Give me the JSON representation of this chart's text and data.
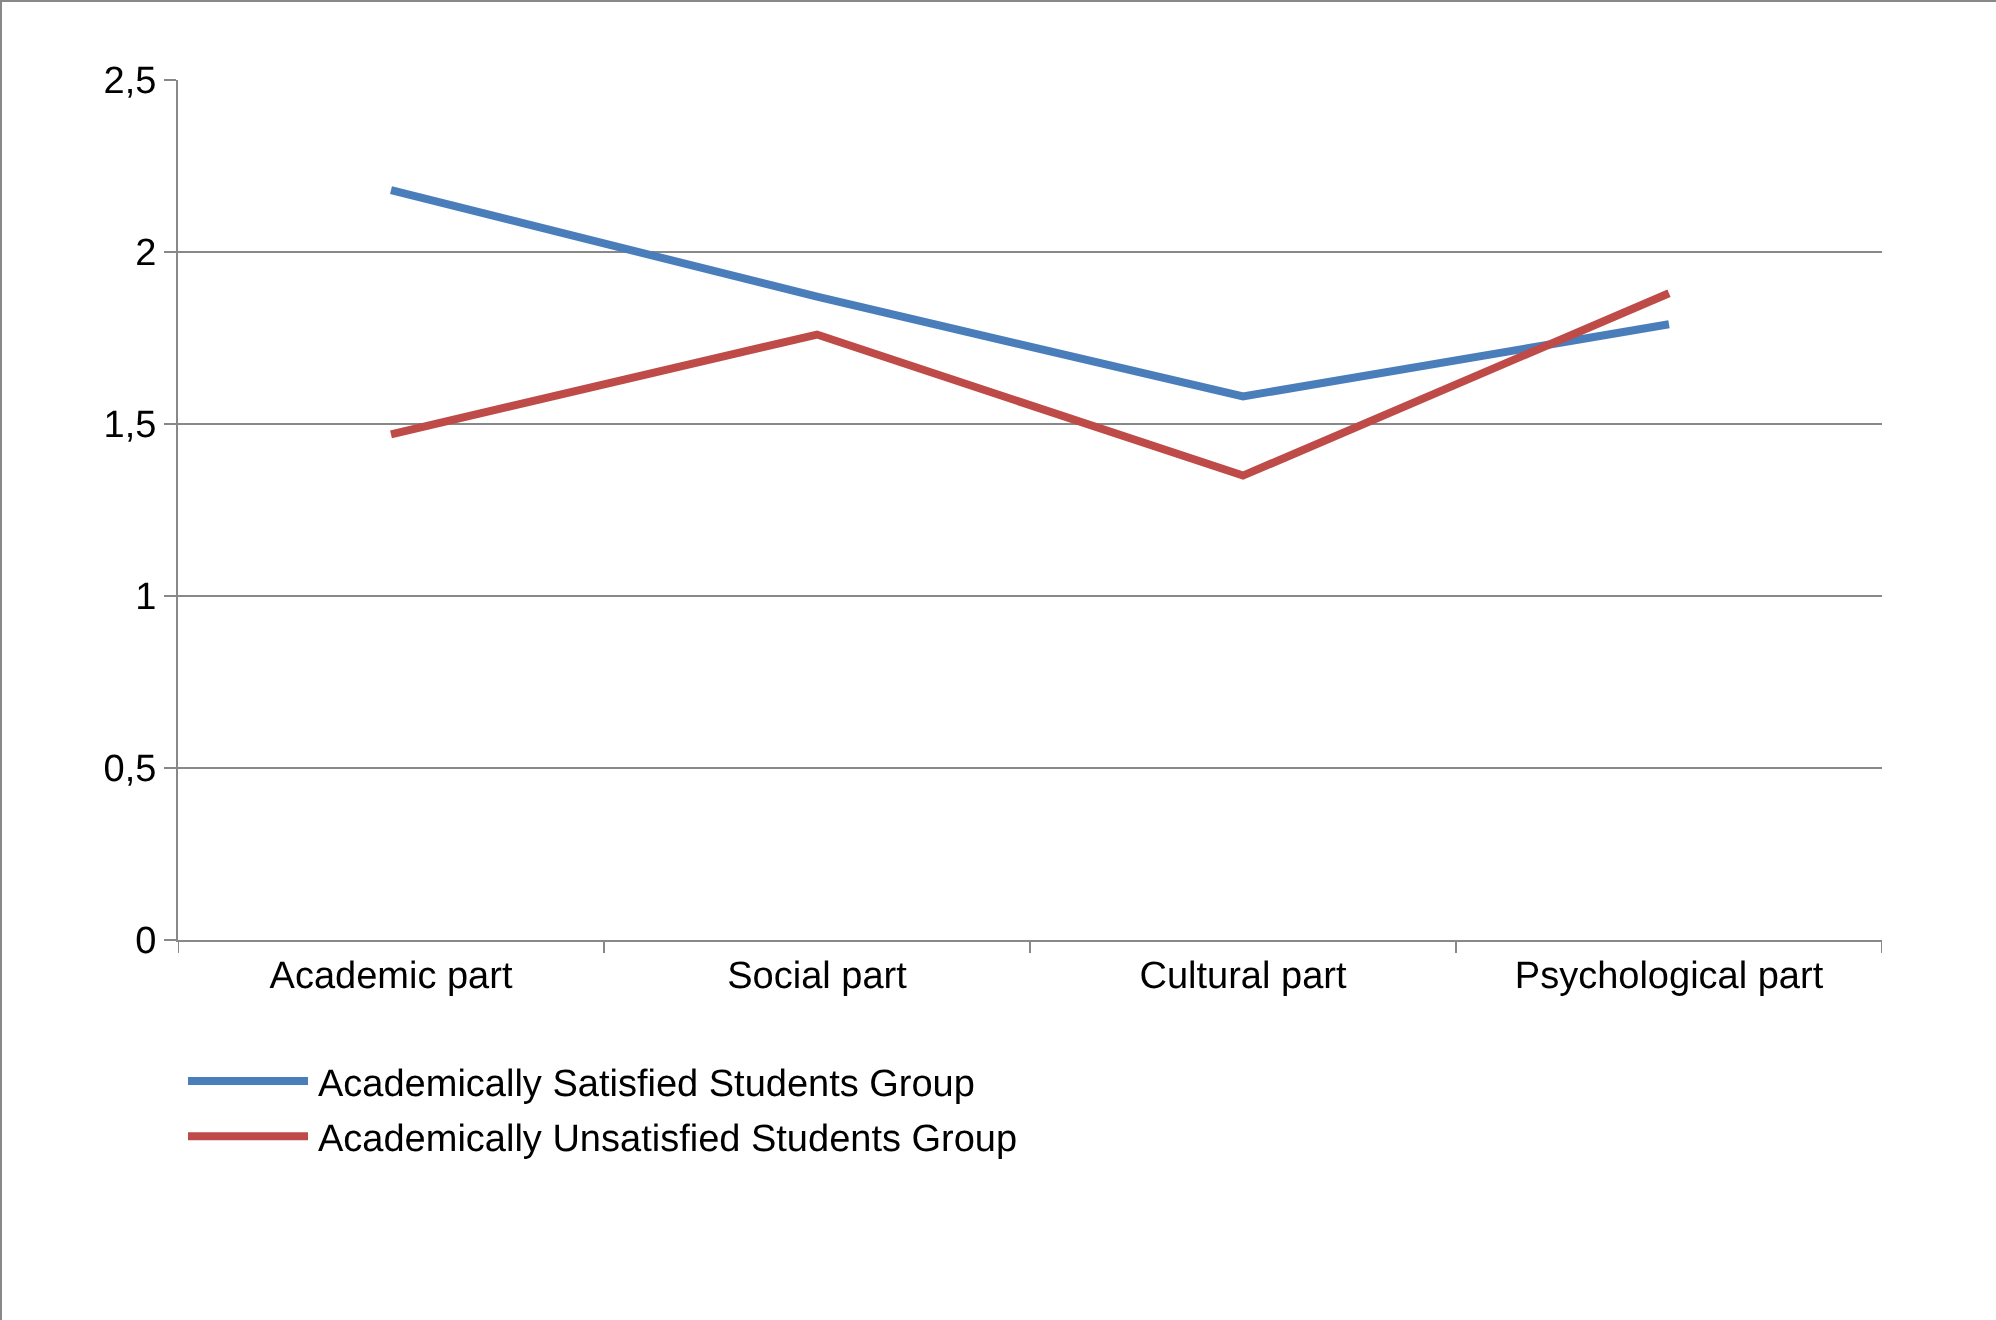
{
  "chart_data": {
    "type": "line",
    "categories": [
      "Academic part",
      "Social part",
      "Cultural part",
      "Psychological part"
    ],
    "series": [
      {
        "name": "Academically Satisfied Students Group",
        "color": "#4a7ebb",
        "values": [
          2.18,
          1.87,
          1.58,
          1.79
        ]
      },
      {
        "name": "Academically Unsatisfied Students Group",
        "color": "#be4b48",
        "values": [
          1.47,
          1.76,
          1.35,
          1.88
        ]
      }
    ],
    "ylim": [
      0,
      2.5
    ],
    "yticks": [
      {
        "value": 0,
        "label": "0"
      },
      {
        "value": 0.5,
        "label": "0,5"
      },
      {
        "value": 1,
        "label": "1"
      },
      {
        "value": 1.5,
        "label": "1,5"
      },
      {
        "value": 2,
        "label": "2"
      },
      {
        "value": 2.5,
        "label": "2,5"
      }
    ],
    "grid": "y",
    "legend": "bottom left",
    "marker": "none",
    "line_style": "solid"
  }
}
